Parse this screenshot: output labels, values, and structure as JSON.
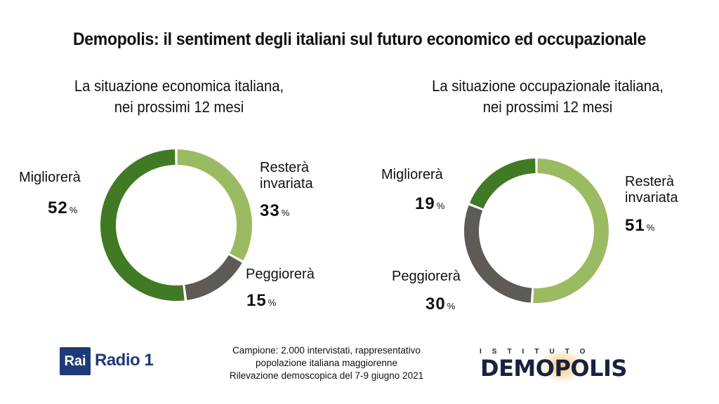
{
  "title": "Demopolis: il sentiment degli italiani sul futuro economico ed occupazionale",
  "chart_data": [
    {
      "type": "pie",
      "subtitle_lines": [
        "La situazione economica italiana,",
        "nei prossimi 12 mesi"
      ],
      "slices": [
        {
          "label_lines": [
            "Resterà",
            "invariata"
          ],
          "value": 33,
          "color": "#9bbb62"
        },
        {
          "label_lines": [
            "Peggiorerà"
          ],
          "value": 15,
          "color": "#5e5a55"
        },
        {
          "label_lines": [
            "Migliorerà"
          ],
          "value": 52,
          "color": "#407a24"
        }
      ],
      "unit": "%"
    },
    {
      "type": "pie",
      "subtitle_lines": [
        "La situazione occupazionale italiana,",
        "nei prossimi 12 mesi"
      ],
      "slices": [
        {
          "label_lines": [
            "Resterà",
            "invariata"
          ],
          "value": 51,
          "color": "#9bbb62"
        },
        {
          "label_lines": [
            "Peggiorerà"
          ],
          "value": 30,
          "color": "#5e5a55"
        },
        {
          "label_lines": [
            "Migliorerà"
          ],
          "value": 19,
          "color": "#407a24"
        }
      ],
      "unit": "%"
    }
  ],
  "footer_lines": [
    "Campione: 2.000 intervistati, rappresentativo",
    "popolazione italiana maggiorenne",
    "Rilevazione demoscopica del 7-9 giugno 2021"
  ],
  "logos": {
    "rai_box": "Rai",
    "rai_radio": "Radio 1",
    "istituto": "ISTITUTO",
    "demopolis": "DEMOPOLIS"
  }
}
